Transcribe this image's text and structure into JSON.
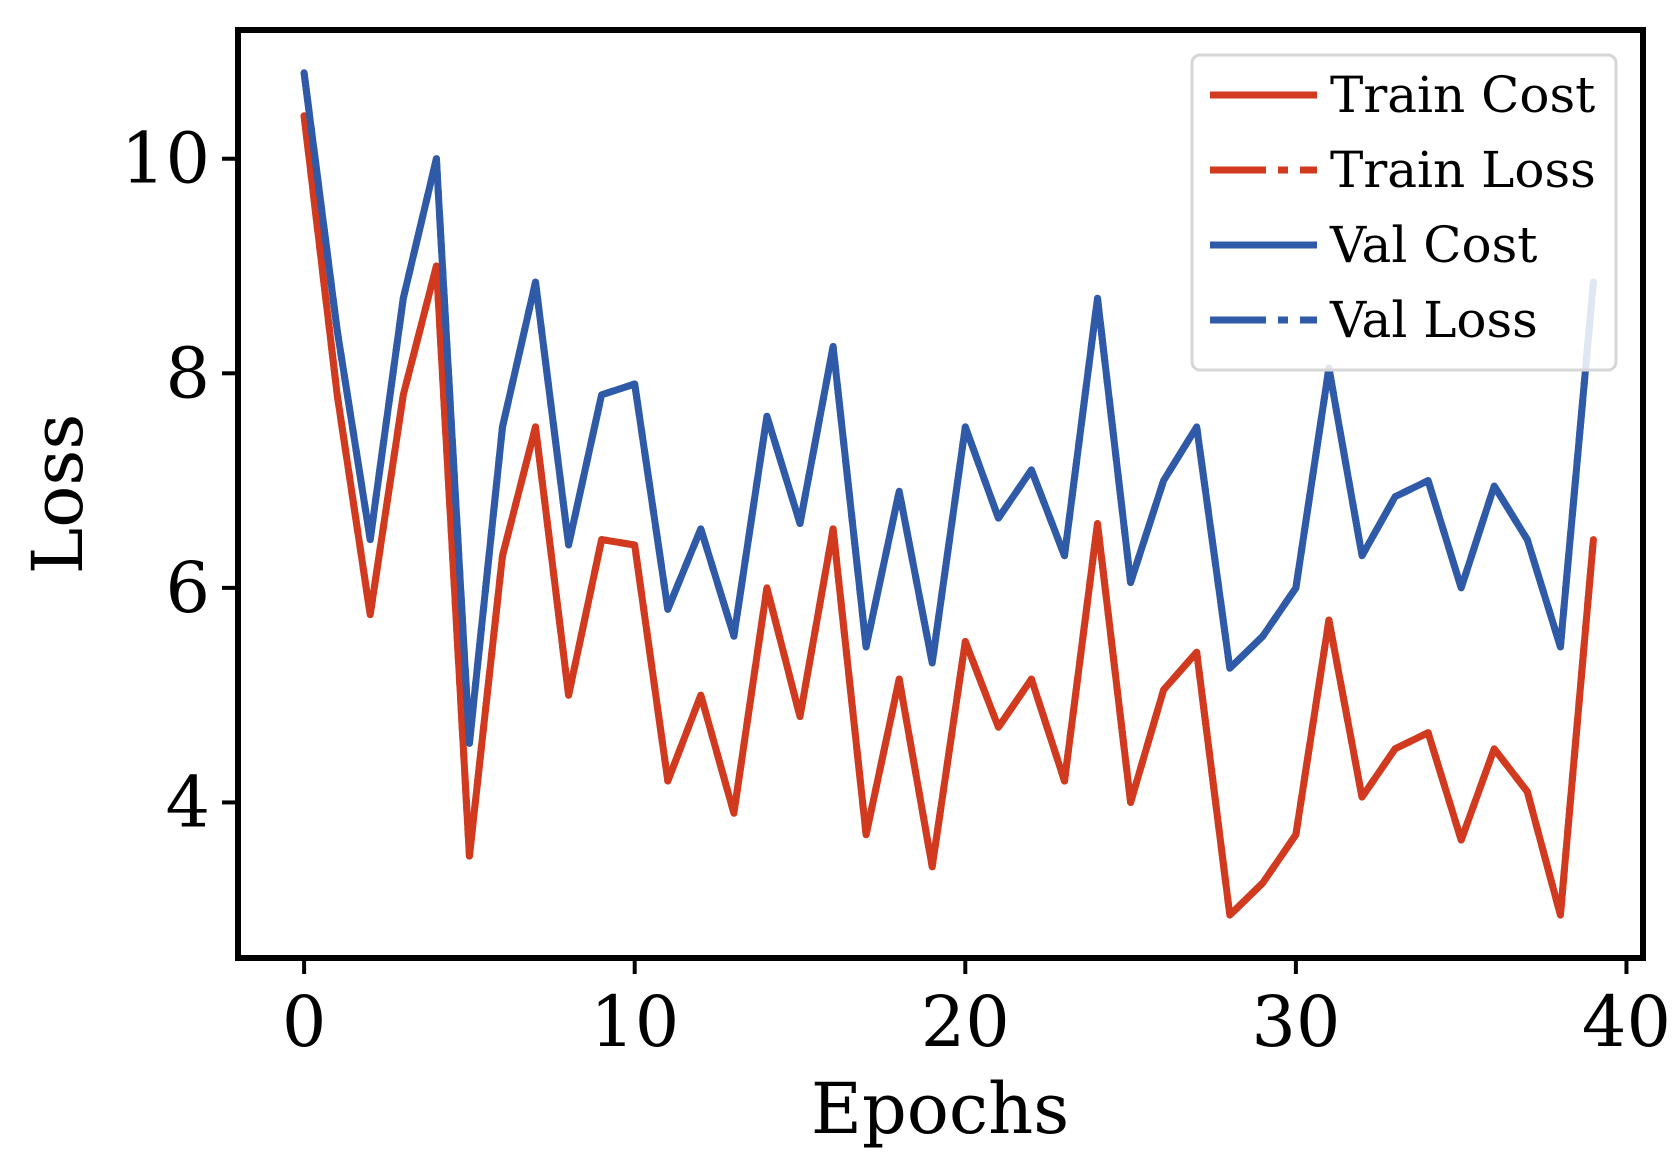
{
  "chart_data": {
    "type": "line",
    "xlabel": "Epochs",
    "ylabel": "Loss",
    "xlim": [
      -2,
      40.5
    ],
    "ylim": [
      2.55,
      11.2
    ],
    "xticks": [
      0,
      10,
      20,
      30,
      40
    ],
    "yticks": [
      4,
      6,
      8,
      10
    ],
    "grid": false,
    "legend": {
      "placement": "top-right"
    },
    "colors": {
      "train": "#d13a1e",
      "val": "#2f5aa8"
    },
    "x": [
      0,
      1,
      2,
      3,
      4,
      5,
      6,
      7,
      8,
      9,
      10,
      11,
      12,
      13,
      14,
      15,
      16,
      17,
      18,
      19,
      20,
      21,
      22,
      23,
      24,
      25,
      26,
      27,
      28,
      29,
      30,
      31,
      32,
      33,
      34,
      35,
      36,
      37,
      38,
      39
    ],
    "series": [
      {
        "name": "Train Cost",
        "style": "solid",
        "color": "#d13a1e",
        "values": [
          10.4,
          7.8,
          5.75,
          7.8,
          9.0,
          3.5,
          6.3,
          7.5,
          5.0,
          6.45,
          6.4,
          4.2,
          5.0,
          3.9,
          6.0,
          4.8,
          6.55,
          3.7,
          5.15,
          3.4,
          5.5,
          4.7,
          5.15,
          4.2,
          6.6,
          4.0,
          5.05,
          5.4,
          2.95,
          3.25,
          3.7,
          5.7,
          4.05,
          4.5,
          4.65,
          3.65,
          4.5,
          4.1,
          2.95,
          6.45
        ]
      },
      {
        "name": "Train Loss",
        "style": "dashed",
        "color": "#d13a1e",
        "values": [
          10.4,
          7.8,
          5.75,
          7.8,
          9.0,
          3.5,
          6.3,
          7.5,
          5.0,
          6.45,
          6.4,
          4.2,
          5.0,
          3.9,
          6.0,
          4.8,
          6.55,
          3.7,
          5.15,
          3.4,
          5.5,
          4.7,
          5.15,
          4.2,
          6.6,
          4.0,
          5.05,
          5.4,
          2.95,
          3.25,
          3.7,
          5.7,
          4.05,
          4.5,
          4.65,
          3.65,
          4.5,
          4.1,
          2.95,
          6.45
        ]
      },
      {
        "name": "Val Cost",
        "style": "solid",
        "color": "#2f5aa8",
        "values": [
          10.8,
          8.4,
          6.45,
          8.7,
          10.0,
          4.55,
          7.5,
          8.85,
          6.4,
          7.8,
          7.9,
          5.8,
          6.55,
          5.55,
          7.6,
          6.6,
          8.25,
          5.45,
          6.9,
          5.3,
          7.5,
          6.65,
          7.1,
          6.3,
          8.7,
          6.05,
          7.0,
          7.5,
          5.25,
          5.55,
          6.0,
          8.05,
          6.3,
          6.85,
          7.0,
          6.0,
          6.95,
          6.45,
          5.45,
          8.85
        ]
      },
      {
        "name": "Val Loss",
        "style": "dashed",
        "color": "#2f5aa8",
        "values": [
          10.8,
          8.4,
          6.45,
          8.7,
          10.0,
          4.55,
          7.5,
          8.85,
          6.4,
          7.8,
          7.9,
          5.8,
          6.55,
          5.55,
          7.6,
          6.6,
          8.25,
          5.45,
          6.9,
          5.3,
          7.5,
          6.65,
          7.1,
          6.3,
          8.7,
          6.05,
          7.0,
          7.5,
          5.25,
          5.55,
          6.0,
          8.05,
          6.3,
          6.85,
          7.0,
          6.0,
          6.95,
          6.45,
          5.45,
          8.85
        ]
      }
    ]
  }
}
